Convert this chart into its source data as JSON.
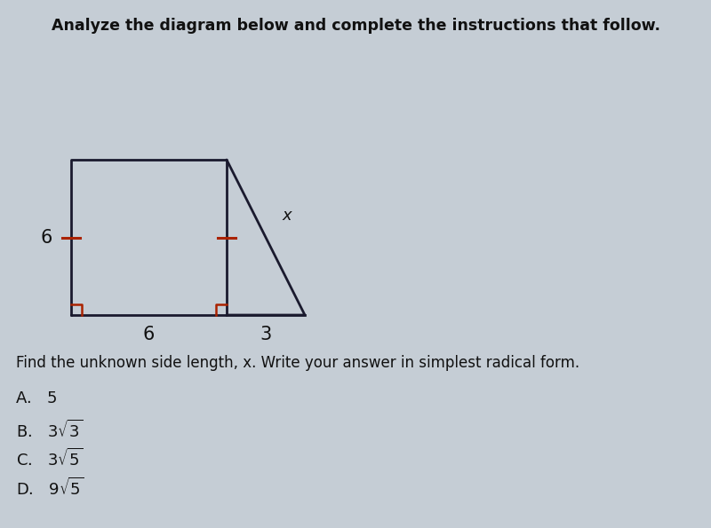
{
  "background_color": "#c5cdd5",
  "title_text": "Analyze the diagram below and complete the instructions that follow.",
  "title_fontsize": 12.5,
  "instruction_text": "Find the unknown side length, x. Write your answer in simplest radical form.",
  "instruction_fontsize": 12,
  "shape_color": "#1a1a2e",
  "right_angle_color": "#aa2200",
  "tick_color": "#aa2200",
  "label_6_left": "6",
  "label_6_bottom": "6",
  "label_3_bottom": "3",
  "label_x": "x",
  "fig_width": 8.0,
  "fig_height": 5.95,
  "dpi": 100
}
